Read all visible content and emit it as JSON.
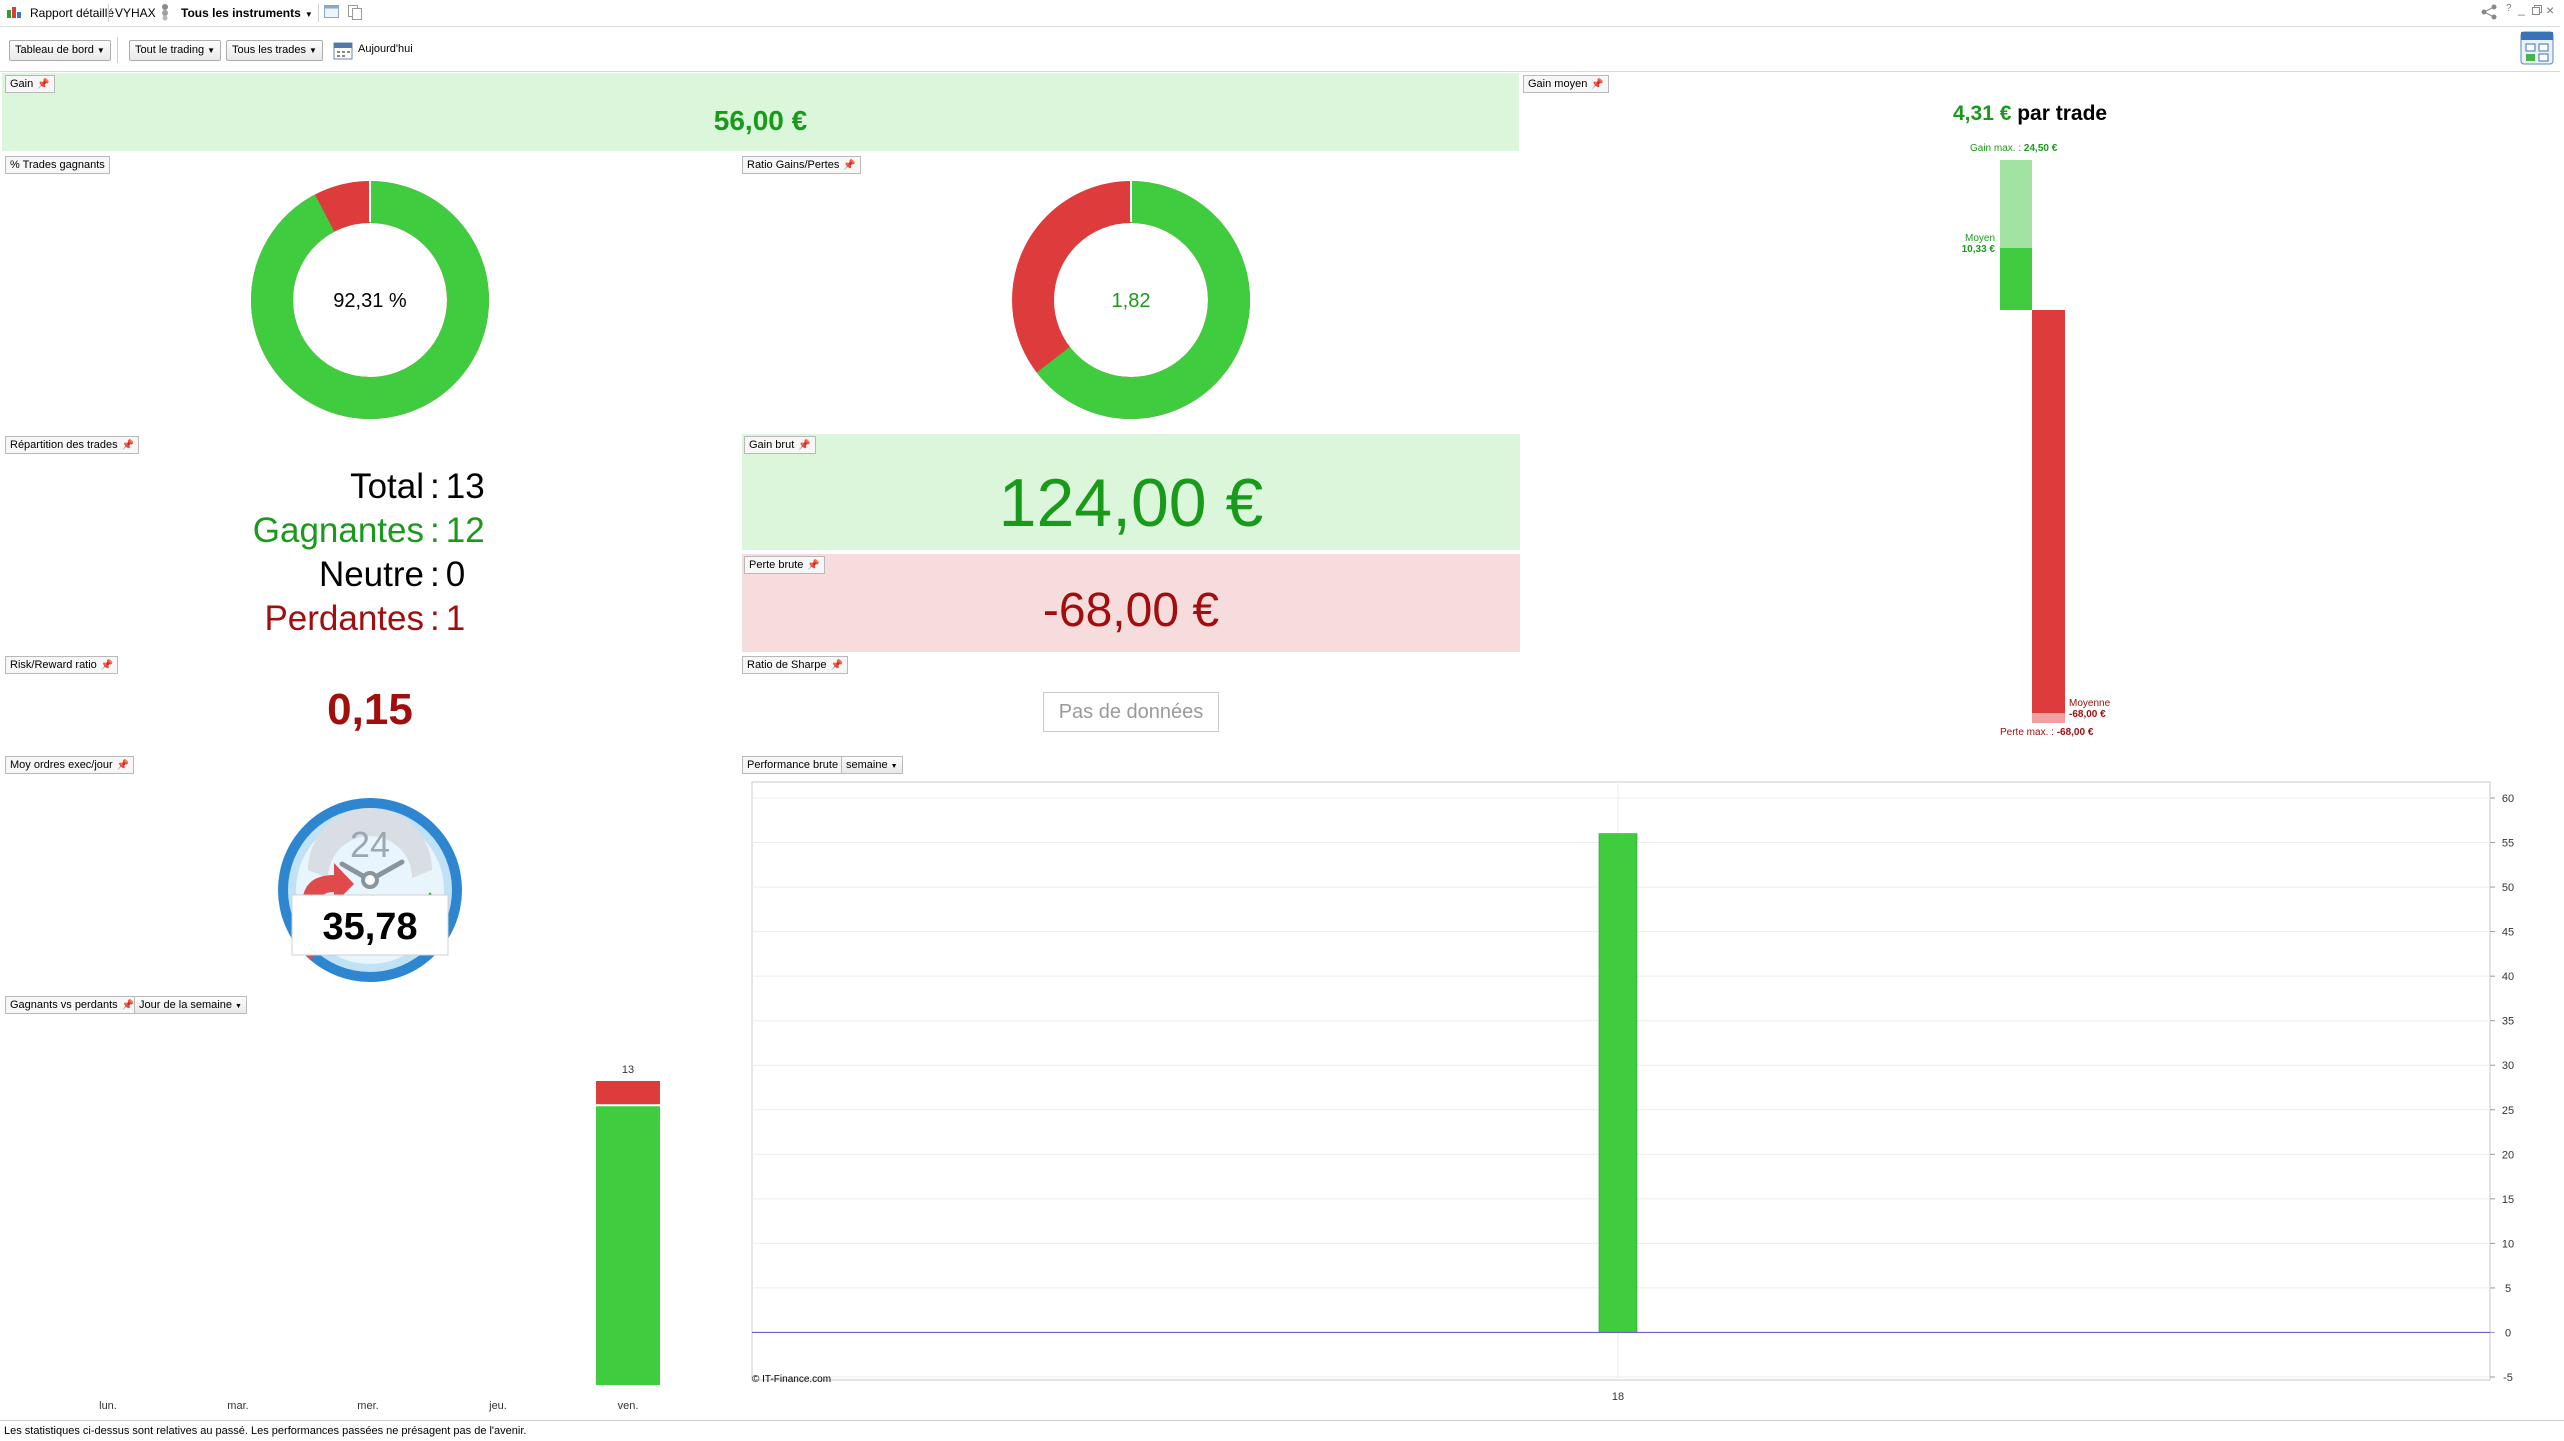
{
  "window": {
    "tab_label": "Rapport détaillé",
    "symbol": "VYHAX",
    "instruments_label": "Tous les instruments"
  },
  "toolbar": {
    "dashboard_label": "Tableau de bord",
    "trading_label": "Tout le trading",
    "trades_label": "Tous les trades",
    "today_label": "Aujourd'hui"
  },
  "gain": {
    "label": "Gain",
    "value": "56,00 €"
  },
  "gain_moyen": {
    "label": "Gain moyen",
    "value": "4,31 €",
    "suffix": "par trade",
    "gain_max_label": "Gain max. :",
    "gain_max_value": "24,50 €",
    "moyen_label": "Moyen",
    "moyen_value": "10,33 €",
    "moyenne_label": "Moyenne",
    "moyenne_value": "-68,00 €",
    "perte_max_label": "Perte max. :",
    "perte_max_value": "-68,00 €"
  },
  "pct_gagnants": {
    "label": "% Trades gagnants",
    "value": "92,31 %",
    "fraction": 0.9231
  },
  "ratio_gains": {
    "label": "Ratio Gains/Pertes",
    "value": "1,82",
    "fraction": 0.6454
  },
  "repartition": {
    "label": "Répartition des trades",
    "rows": [
      {
        "name": "Total",
        "value": "13"
      },
      {
        "name": "Gagnantes",
        "value": "12"
      },
      {
        "name": "Neutre",
        "value": "0"
      },
      {
        "name": "Perdantes",
        "value": "1"
      }
    ]
  },
  "gain_brut": {
    "label": "Gain brut",
    "value": "124,00 €"
  },
  "perte_brute": {
    "label": "Perte brute",
    "value": "-68,00 €"
  },
  "risk_reward": {
    "label": "Risk/Reward ratio",
    "value": "0,15"
  },
  "sharpe": {
    "label": "Ratio de Sharpe",
    "no_data": "Pas de données"
  },
  "moy_ordres": {
    "label": "Moy ordres exec/jour",
    "value": "35,78",
    "clock_number": "24"
  },
  "gagnants_vs_perdants": {
    "label": "Gagnants vs perdants",
    "period_label": "Jour de la semaine",
    "days": [
      "lun.",
      "mar.",
      "mer.",
      "jeu.",
      "ven."
    ],
    "chart_data": {
      "type": "bar",
      "categories": [
        "lun.",
        "mar.",
        "mer.",
        "jeu.",
        "ven."
      ],
      "series": [
        {
          "name": "Gagnants",
          "values": [
            0,
            0,
            0,
            0,
            12
          ]
        },
        {
          "name": "Perdants",
          "values": [
            0,
            0,
            0,
            0,
            1
          ]
        }
      ],
      "total_labels": [
        "",
        "",
        "",
        "",
        "13"
      ]
    }
  },
  "performance": {
    "label": "Performance brute",
    "period_label": "semaine",
    "copyright": "© IT-Finance.com",
    "chart_data": {
      "type": "bar",
      "categories": [
        "18"
      ],
      "values": [
        56
      ],
      "ylim": [
        -5,
        60
      ],
      "yticks": [
        "60",
        "55",
        "50",
        "45",
        "40",
        "35",
        "30",
        "25",
        "20",
        "15",
        "10",
        "5",
        "0",
        "-5"
      ]
    }
  },
  "colors": {
    "green": "#3fcd3f",
    "red": "#de3c3c",
    "text_green": "#1a9a1a",
    "text_red": "#a10e0e",
    "light_green": "#dcf6dc",
    "light_red": "#f6dcdc"
  },
  "status": "Les statistiques ci-dessus sont relatives au passé. Les performances passées ne présagent pas de l'avenir."
}
